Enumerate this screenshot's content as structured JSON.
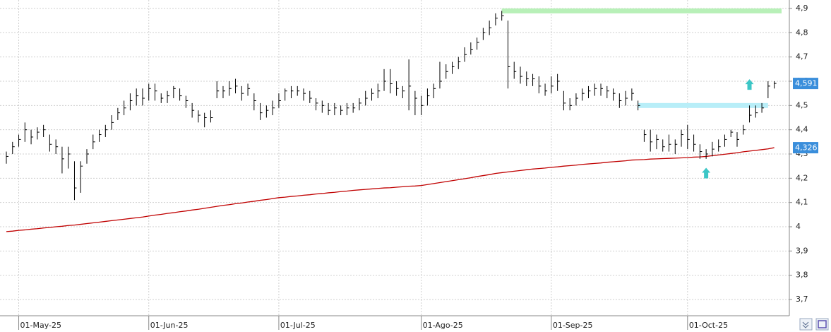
{
  "chart_data": {
    "type": "ohlc",
    "categories": [
      null,
      null,
      "01-May-25",
      null,
      null,
      null,
      null,
      null,
      null,
      null,
      null,
      null,
      null,
      null,
      null,
      null,
      null,
      null,
      null,
      null,
      null,
      null,
      null,
      "01-Jun-25",
      null,
      null,
      null,
      null,
      null,
      null,
      null,
      null,
      null,
      null,
      null,
      null,
      null,
      null,
      null,
      null,
      null,
      null,
      null,
      null,
      "01-Jul-25",
      null,
      null,
      null,
      null,
      null,
      null,
      null,
      null,
      null,
      null,
      null,
      null,
      null,
      null,
      null,
      null,
      null,
      null,
      null,
      null,
      null,
      null,
      "01-Ago-25",
      null,
      null,
      null,
      null,
      null,
      null,
      null,
      null,
      null,
      null,
      null,
      null,
      null,
      null,
      null,
      null,
      null,
      null,
      null,
      null,
      "01-Sep-25",
      null,
      null,
      null,
      null,
      null,
      null,
      null,
      null,
      null,
      null,
      null,
      null,
      null,
      null,
      null,
      null,
      null,
      null,
      null,
      null,
      null,
      "01-Oct-25",
      null,
      null,
      null,
      null,
      null,
      null,
      null,
      null,
      null,
      null,
      null,
      null,
      null,
      null
    ],
    "high": [
      4.31,
      4.35,
      4.38,
      4.43,
      4.4,
      4.41,
      4.42,
      4.38,
      4.36,
      4.33,
      4.33,
      4.27,
      4.27,
      4.32,
      4.38,
      4.4,
      4.42,
      4.46,
      4.49,
      4.52,
      4.55,
      4.57,
      4.57,
      4.59,
      4.59,
      4.55,
      4.56,
      4.58,
      4.57,
      4.54,
      4.51,
      4.48,
      4.47,
      4.48,
      4.6,
      4.58,
      4.6,
      4.61,
      4.58,
      4.59,
      4.55,
      4.51,
      4.5,
      4.52,
      4.55,
      4.57,
      4.58,
      4.58,
      4.57,
      4.56,
      4.53,
      4.52,
      4.51,
      4.51,
      4.5,
      4.51,
      4.51,
      4.53,
      4.56,
      4.57,
      4.59,
      4.65,
      4.65,
      4.6,
      4.58,
      4.69,
      4.56,
      4.54,
      4.57,
      4.59,
      4.68,
      4.67,
      4.68,
      4.7,
      4.74,
      4.76,
      4.78,
      4.82,
      4.85,
      4.88,
      4.89,
      4.85,
      4.68,
      4.66,
      4.64,
      4.63,
      4.62,
      4.59,
      4.62,
      4.63,
      4.56,
      4.53,
      4.55,
      4.57,
      4.58,
      4.59,
      4.59,
      4.58,
      4.57,
      4.55,
      4.56,
      4.57,
      4.52,
      4.4,
      4.4,
      4.38,
      4.36,
      4.38,
      4.36,
      4.4,
      4.42,
      4.38,
      4.34,
      4.32,
      4.35,
      4.36,
      4.38,
      4.4,
      4.39,
      4.42,
      4.5,
      4.5,
      4.51,
      4.6,
      4.6
    ],
    "low": [
      4.26,
      4.3,
      4.33,
      4.35,
      4.34,
      4.36,
      4.37,
      4.31,
      4.3,
      4.22,
      4.24,
      4.11,
      4.14,
      4.26,
      4.32,
      4.35,
      4.37,
      4.4,
      4.44,
      4.46,
      4.48,
      4.5,
      4.5,
      4.52,
      4.52,
      4.51,
      4.51,
      4.53,
      4.52,
      4.49,
      4.45,
      4.43,
      4.41,
      4.43,
      4.53,
      4.53,
      4.54,
      4.55,
      4.52,
      4.54,
      4.48,
      4.44,
      4.45,
      4.46,
      4.49,
      4.52,
      4.53,
      4.54,
      4.52,
      4.51,
      4.48,
      4.47,
      4.46,
      4.46,
      4.46,
      4.46,
      4.47,
      4.48,
      4.5,
      4.52,
      4.53,
      4.56,
      4.55,
      4.54,
      4.53,
      4.48,
      4.46,
      4.46,
      4.5,
      4.53,
      4.57,
      4.61,
      4.63,
      4.65,
      4.68,
      4.71,
      4.73,
      4.77,
      4.79,
      4.83,
      4.85,
      4.57,
      4.61,
      4.59,
      4.58,
      4.58,
      4.55,
      4.54,
      4.55,
      4.56,
      4.48,
      4.48,
      4.5,
      4.52,
      4.53,
      4.54,
      4.54,
      4.53,
      4.52,
      4.49,
      4.5,
      4.52,
      4.48,
      4.35,
      4.31,
      4.32,
      4.31,
      4.31,
      4.3,
      4.33,
      4.32,
      4.31,
      4.28,
      4.28,
      4.29,
      4.31,
      4.33,
      4.37,
      4.33,
      4.38,
      4.43,
      4.45,
      4.47,
      4.53,
      4.57
    ],
    "close": [
      4.29,
      4.33,
      4.36,
      4.4,
      4.37,
      4.39,
      4.4,
      4.34,
      4.33,
      4.28,
      4.3,
      4.16,
      4.25,
      4.3,
      4.35,
      4.38,
      4.4,
      4.43,
      4.47,
      4.49,
      4.52,
      4.54,
      4.53,
      4.57,
      4.56,
      4.53,
      4.54,
      4.57,
      4.54,
      4.52,
      4.48,
      4.46,
      4.45,
      4.45,
      4.56,
      4.56,
      4.57,
      4.58,
      4.55,
      4.57,
      4.52,
      4.47,
      4.48,
      4.49,
      4.52,
      4.56,
      4.56,
      4.56,
      4.55,
      4.53,
      4.51,
      4.5,
      4.48,
      4.49,
      4.48,
      4.49,
      4.49,
      4.51,
      4.53,
      4.55,
      4.56,
      4.6,
      4.59,
      4.57,
      4.56,
      4.58,
      4.53,
      4.5,
      4.54,
      4.57,
      4.6,
      4.64,
      4.66,
      4.68,
      4.71,
      4.73,
      4.76,
      4.8,
      4.82,
      4.86,
      4.87,
      4.66,
      4.64,
      4.62,
      4.61,
      4.61,
      4.58,
      4.56,
      4.58,
      4.6,
      4.51,
      4.5,
      4.53,
      4.55,
      4.56,
      4.57,
      4.57,
      4.56,
      4.55,
      4.52,
      4.53,
      4.55,
      4.5,
      4.38,
      4.35,
      4.36,
      4.33,
      4.34,
      4.34,
      4.38,
      4.36,
      4.34,
      4.31,
      4.3,
      4.32,
      4.33,
      4.36,
      4.39,
      4.36,
      4.4,
      4.46,
      4.47,
      4.49,
      4.58,
      4.591
    ],
    "bar_color": "#000000",
    "moving_average": {
      "color": "#c00000",
      "values": [
        3.98,
        3.982,
        3.985,
        3.987,
        3.99,
        3.992,
        3.995,
        3.997,
        4.0,
        4.002,
        4.005,
        4.007,
        4.01,
        4.013,
        4.016,
        4.019,
        4.022,
        4.025,
        4.028,
        4.031,
        4.034,
        4.037,
        4.04,
        4.044,
        4.048,
        4.051,
        4.055,
        4.058,
        4.062,
        4.065,
        4.069,
        4.072,
        4.076,
        4.08,
        4.084,
        4.088,
        4.091,
        4.095,
        4.098,
        4.102,
        4.105,
        4.109,
        4.112,
        4.116,
        4.12,
        4.122,
        4.125,
        4.127,
        4.13,
        4.132,
        4.135,
        4.137,
        4.14,
        4.142,
        4.145,
        4.147,
        4.15,
        4.152,
        4.154,
        4.156,
        4.158,
        4.16,
        4.161,
        4.163,
        4.165,
        4.167,
        4.168,
        4.17,
        4.174,
        4.178,
        4.182,
        4.186,
        4.19,
        4.194,
        4.198,
        4.202,
        4.207,
        4.211,
        4.215,
        4.22,
        4.223,
        4.226,
        4.229,
        4.232,
        4.235,
        4.238,
        4.24,
        4.242,
        4.245,
        4.247,
        4.25,
        4.252,
        4.254,
        4.257,
        4.259,
        4.261,
        4.263,
        4.266,
        4.268,
        4.27,
        4.272,
        4.275,
        4.276,
        4.277,
        4.279,
        4.28,
        4.281,
        4.282,
        4.283,
        4.284,
        4.285,
        4.287,
        4.288,
        4.29,
        4.293,
        4.296,
        4.299,
        4.302,
        4.305,
        4.309,
        4.312,
        4.315,
        4.318,
        4.321,
        4.326
      ]
    },
    "levels": [
      {
        "value": 4.89,
        "start_index": 80,
        "color": "#b8f0b8"
      },
      {
        "value": 4.5,
        "start_index": 102,
        "end_index": 123,
        "color": "#b8eef8"
      }
    ],
    "signals": [
      {
        "index": 113,
        "value": 4.22,
        "color": "#3cc6c6"
      },
      {
        "index": 120,
        "value": 4.585,
        "color": "#3cc6c6"
      }
    ],
    "price_labels": [
      {
        "value": 4.591,
        "label": "4,591",
        "color": "#3a8edb"
      },
      {
        "value": 4.326,
        "label": "4,326",
        "color": "#3a8edb"
      }
    ],
    "ylim": [
      3.635,
      4.935
    ],
    "yticks": [
      {
        "value": 3.7,
        "label": "3,7"
      },
      {
        "value": 3.8,
        "label": "3,8"
      },
      {
        "value": 3.9,
        "label": "3,9"
      },
      4,
      {
        "value": 4.1,
        "label": "4,1"
      },
      {
        "value": 4.2,
        "label": "4,2"
      },
      {
        "value": 4.3,
        "label": "4,3"
      },
      {
        "value": 4.4,
        "label": "4,4"
      },
      {
        "value": 4.5,
        "label": "4,5"
      },
      {
        "value": 4.6,
        "label": "4,6"
      },
      {
        "value": 4.7,
        "label": "4,7"
      },
      {
        "value": 4.8,
        "label": "4,8"
      },
      {
        "value": 4.9,
        "label": "4,9"
      }
    ],
    "grid": true
  }
}
